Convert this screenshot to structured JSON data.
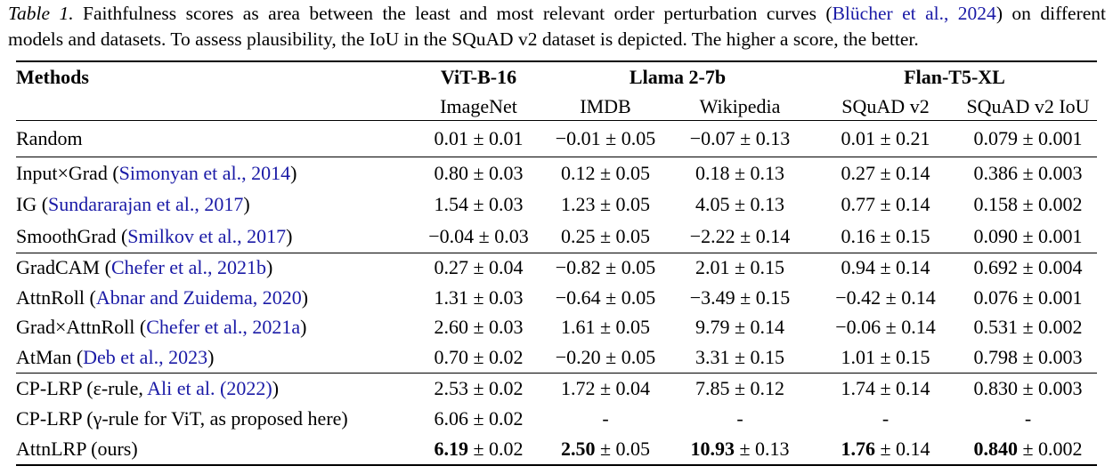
{
  "colors": {
    "citation_blue": "#1a1aa6",
    "text": "#000000",
    "background": "#ffffff"
  },
  "caption": {
    "label": "Table 1.",
    "line1_before_cite": " Faithfulness scores as area between the least and most relevant order perturbation curves (",
    "citation": "Blücher et al., 2024",
    "line1_after_cite": ") on different",
    "line2": "models and datasets. To assess plausibility, the IoU in the SQuAD v2 dataset is depicted. The higher a score, the better."
  },
  "table": {
    "header": {
      "methods_label": "Methods",
      "model_groups": [
        {
          "label": "ViT-B-16",
          "span": 1
        },
        {
          "label": "Llama 2-7b",
          "span": 2
        },
        {
          "label": "Flan-T5-XL",
          "span": 2
        }
      ],
      "dataset_columns": [
        "ImageNet",
        "IMDB",
        "Wikipedia",
        "SQuAD v2",
        "SQuAD v2 IoU"
      ]
    },
    "groups": [
      {
        "rows": [
          {
            "method": {
              "prefix": "Random",
              "citation": "",
              "suffix": ""
            },
            "cells": [
              {
                "v": "0.01",
                "pm": "0.01",
                "b": false
              },
              {
                "v": "−0.01",
                "pm": "0.05",
                "b": false
              },
              {
                "v": "−0.07",
                "pm": "0.13",
                "b": false
              },
              {
                "v": "0.01",
                "pm": "0.21",
                "b": false
              },
              {
                "v": "0.079",
                "pm": "0.001",
                "b": false
              }
            ]
          }
        ]
      },
      {
        "rows": [
          {
            "method": {
              "prefix": "Input×Grad (",
              "citation": "Simonyan et al., 2014",
              "suffix": ")"
            },
            "cells": [
              {
                "v": "0.80",
                "pm": "0.03",
                "b": false
              },
              {
                "v": "0.12",
                "pm": "0.05",
                "b": false
              },
              {
                "v": "0.18",
                "pm": "0.13",
                "b": false
              },
              {
                "v": "0.27",
                "pm": "0.14",
                "b": false
              },
              {
                "v": "0.386",
                "pm": "0.003",
                "b": false
              }
            ]
          },
          {
            "method": {
              "prefix": "IG (",
              "citation": "Sundararajan et al., 2017",
              "suffix": ")"
            },
            "cells": [
              {
                "v": "1.54",
                "pm": "0.03",
                "b": false
              },
              {
                "v": "1.23",
                "pm": "0.05",
                "b": false
              },
              {
                "v": "4.05",
                "pm": "0.13",
                "b": false
              },
              {
                "v": "0.77",
                "pm": "0.14",
                "b": false
              },
              {
                "v": "0.158",
                "pm": "0.002",
                "b": false
              }
            ]
          },
          {
            "method": {
              "prefix": "SmoothGrad (",
              "citation": "Smilkov et al., 2017",
              "suffix": ")"
            },
            "cells": [
              {
                "v": "−0.04",
                "pm": "0.03",
                "b": false
              },
              {
                "v": "0.25",
                "pm": "0.05",
                "b": false
              },
              {
                "v": "−2.22",
                "pm": "0.14",
                "b": false
              },
              {
                "v": "0.16",
                "pm": "0.15",
                "b": false
              },
              {
                "v": "0.090",
                "pm": "0.001",
                "b": false
              }
            ]
          }
        ]
      },
      {
        "rows": [
          {
            "method": {
              "prefix": "GradCAM (",
              "citation": "Chefer et al., 2021b",
              "suffix": ")"
            },
            "cells": [
              {
                "v": "0.27",
                "pm": "0.04",
                "b": false
              },
              {
                "v": "−0.82",
                "pm": "0.05",
                "b": false
              },
              {
                "v": "2.01",
                "pm": "0.15",
                "b": false
              },
              {
                "v": "0.94",
                "pm": "0.14",
                "b": false
              },
              {
                "v": "0.692",
                "pm": "0.004",
                "b": false
              }
            ]
          },
          {
            "method": {
              "prefix": "AttnRoll (",
              "citation": "Abnar and Zuidema, 2020",
              "suffix": ")"
            },
            "cells": [
              {
                "v": "1.31",
                "pm": "0.03",
                "b": false
              },
              {
                "v": "−0.64",
                "pm": "0.05",
                "b": false
              },
              {
                "v": "−3.49",
                "pm": "0.15",
                "b": false
              },
              {
                "v": "−0.42",
                "pm": "0.14",
                "b": false
              },
              {
                "v": "0.076",
                "pm": "0.001",
                "b": false
              }
            ]
          },
          {
            "method": {
              "prefix": "Grad×AttnRoll (",
              "citation": "Chefer et al., 2021a",
              "suffix": ")"
            },
            "cells": [
              {
                "v": "2.60",
                "pm": "0.03",
                "b": false
              },
              {
                "v": "1.61",
                "pm": "0.05",
                "b": false
              },
              {
                "v": "9.79",
                "pm": "0.14",
                "b": false
              },
              {
                "v": "−0.06",
                "pm": "0.14",
                "b": false
              },
              {
                "v": "0.531",
                "pm": "0.002",
                "b": false
              }
            ]
          },
          {
            "method": {
              "prefix": "AtMan (",
              "citation": "Deb et al., 2023",
              "suffix": ")"
            },
            "cells": [
              {
                "v": "0.70",
                "pm": "0.02",
                "b": false
              },
              {
                "v": "−0.20",
                "pm": "0.05",
                "b": false
              },
              {
                "v": "3.31",
                "pm": "0.15",
                "b": false
              },
              {
                "v": "1.01",
                "pm": "0.15",
                "b": false
              },
              {
                "v": "0.798",
                "pm": "0.003",
                "b": false
              }
            ]
          }
        ]
      },
      {
        "rows": [
          {
            "method": {
              "prefix": "CP-LRP (ε-rule, ",
              "citation": "Ali et al. (2022)",
              "suffix": ")"
            },
            "cells": [
              {
                "v": "2.53",
                "pm": "0.02",
                "b": false
              },
              {
                "v": "1.72",
                "pm": "0.04",
                "b": false
              },
              {
                "v": "7.85",
                "pm": "0.12",
                "b": false
              },
              {
                "v": "1.74",
                "pm": "0.14",
                "b": false
              },
              {
                "v": "0.830",
                "pm": "0.003",
                "b": false
              }
            ]
          },
          {
            "method": {
              "prefix": "CP-LRP (γ-rule for ViT, as proposed here)",
              "citation": "",
              "suffix": ""
            },
            "cells": [
              {
                "v": "6.06",
                "pm": "0.02",
                "b": false
              },
              {
                "v": "-",
                "pm": null,
                "b": false
              },
              {
                "v": "-",
                "pm": null,
                "b": false
              },
              {
                "v": "-",
                "pm": null,
                "b": false
              },
              {
                "v": "-",
                "pm": null,
                "b": false
              }
            ]
          },
          {
            "method": {
              "prefix": "AttnLRP (ours)",
              "citation": "",
              "suffix": ""
            },
            "cells": [
              {
                "v": "6.19",
                "pm": "0.02",
                "b": true
              },
              {
                "v": "2.50",
                "pm": "0.05",
                "b": true
              },
              {
                "v": "10.93",
                "pm": "0.13",
                "b": true
              },
              {
                "v": "1.76",
                "pm": "0.14",
                "b": true
              },
              {
                "v": "0.840",
                "pm": "0.002",
                "b": true
              }
            ]
          }
        ]
      }
    ]
  }
}
